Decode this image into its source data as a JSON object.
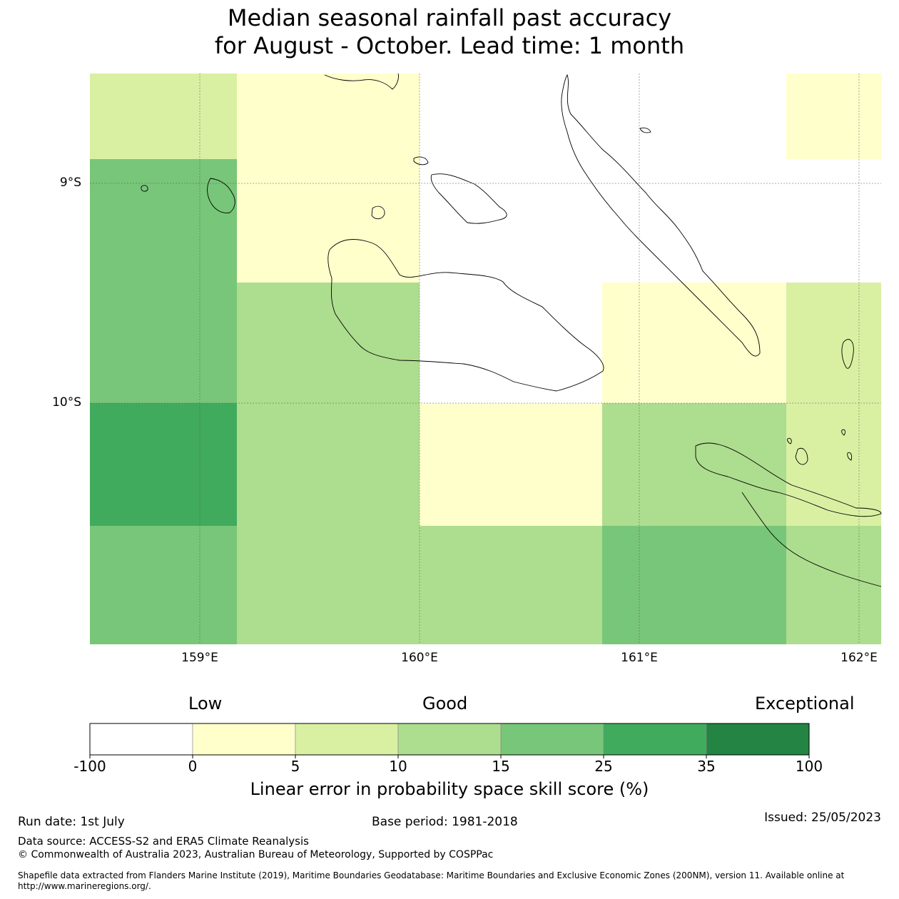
{
  "title": {
    "line1": "Median seasonal rainfall past accuracy",
    "line2": "for August - October. Lead time: 1 month"
  },
  "map": {
    "lat_labels": [
      "9°S",
      "10°S"
    ],
    "lon_labels": [
      "159°E",
      "160°E",
      "161°E",
      "162°E"
    ],
    "cells": [
      {
        "lon0": 158.5,
        "lon1": 159.17,
        "lat0": -8.5,
        "lat1": -8.89,
        "value": 7
      },
      {
        "lon0": 159.17,
        "lon1": 160.0,
        "lat0": -8.5,
        "lat1": -9.45,
        "value": 2
      },
      {
        "lon0": 161.67,
        "lon1": 162.1,
        "lat0": -8.5,
        "lat1": -8.89,
        "value": 2
      },
      {
        "lon0": 158.5,
        "lon1": 159.17,
        "lat0": -8.89,
        "lat1": -10.0,
        "value": 20
      },
      {
        "lon0": 159.17,
        "lon1": 160.0,
        "lat0": -9.45,
        "lat1": -10.56,
        "value": 12
      },
      {
        "lon0": 160.83,
        "lon1": 161.67,
        "lat0": -9.45,
        "lat1": -10.0,
        "value": 2
      },
      {
        "lon0": 161.67,
        "lon1": 162.1,
        "lat0": -9.45,
        "lat1": -10.56,
        "value": 7
      },
      {
        "lon0": 158.5,
        "lon1": 159.17,
        "lat0": -10.0,
        "lat1": -10.56,
        "value": 30
      },
      {
        "lon0": 160.0,
        "lon1": 160.83,
        "lat0": -10.0,
        "lat1": -10.56,
        "value": 2
      },
      {
        "lon0": 160.83,
        "lon1": 161.67,
        "lat0": -10.0,
        "lat1": -10.56,
        "value": 12
      },
      {
        "lon0": 158.5,
        "lon1": 159.17,
        "lat0": -10.56,
        "lat1": -11.1,
        "value": 20
      },
      {
        "lon0": 159.17,
        "lon1": 160.0,
        "lat0": -10.56,
        "lat1": -11.1,
        "value": 12
      },
      {
        "lon0": 160.0,
        "lon1": 160.83,
        "lat0": -10.56,
        "lat1": -11.1,
        "value": 12
      },
      {
        "lon0": 160.83,
        "lon1": 161.67,
        "lat0": -10.56,
        "lat1": -11.1,
        "value": 20
      },
      {
        "lon0": 161.67,
        "lon1": 162.1,
        "lat0": -10.56,
        "lat1": -11.1,
        "value": 12
      }
    ]
  },
  "legend": {
    "quality_labels": [
      "Low",
      "Good",
      "Exceptional"
    ],
    "ticks": [
      "-100",
      "0",
      "5",
      "10",
      "15",
      "25",
      "35",
      "100"
    ],
    "colors": [
      "#ffffff",
      "#ffffcc",
      "#d9f0a3",
      "#addd8e",
      "#78c679",
      "#41ab5d",
      "#238443"
    ],
    "caption": "Linear error in probability space skill score (%)"
  },
  "footer": {
    "run_date": "Run date: 1st July",
    "base_period": "Base period: 1981-2018",
    "issued": "Issued: 25/05/2023",
    "data_source": "Data source: ACCESS-S2 and ERA5 Climate Reanalysis",
    "copyright": "© Commonwealth of Australia 2023, Australian Bureau of Meteorology, Supported by COSPPac",
    "shapefile": "Shapefile data extracted from Flanders Marine Institute (2019), Maritime Boundaries Geodatabase: Maritime Boundaries and Exclusive Economic Zones (200NM), version 11. Available online at http://www.marineregions.org/."
  }
}
